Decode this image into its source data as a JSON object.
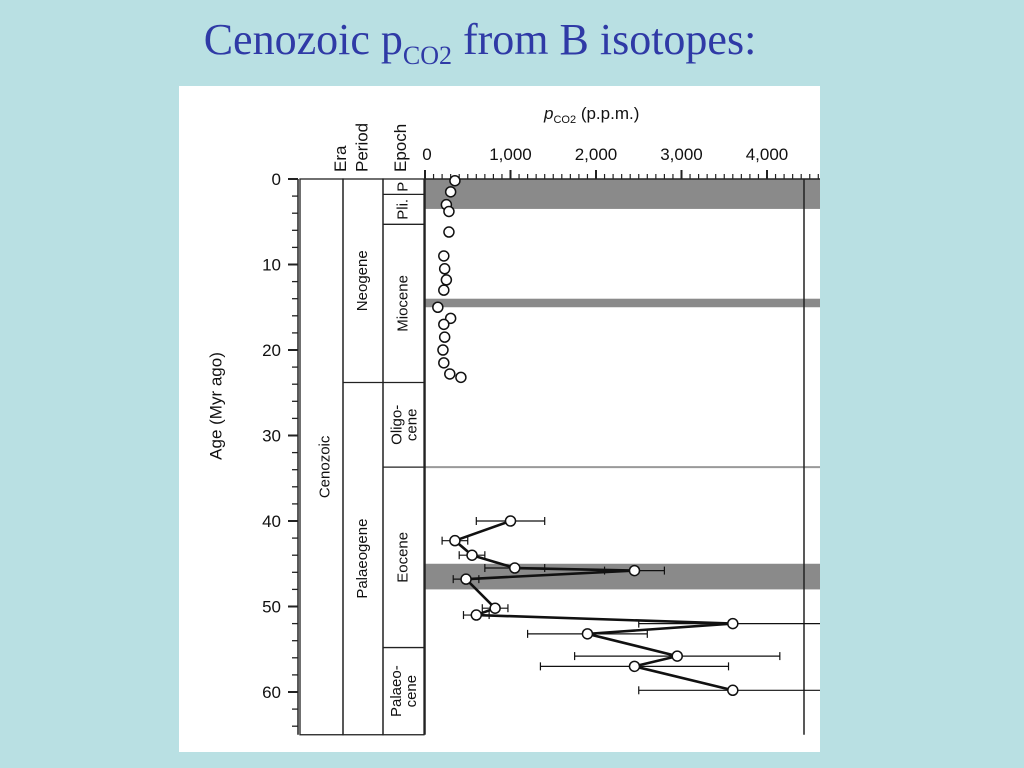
{
  "slide": {
    "title_main": "Cenozoic p",
    "title_sub": "CO2",
    "title_rest": " from B isotopes:",
    "background": "#b9e0e3",
    "title_color": "#2f3aa6"
  },
  "chart_data": {
    "type": "scatter",
    "title": "",
    "xlabel_italic": "p",
    "xlabel_sub": "CO2",
    "xlabel_rest": " (p.p.m.)",
    "ylabel": "Age (Myr ago)",
    "xlim": [
      0,
      5000
    ],
    "ylim": [
      0,
      65
    ],
    "x_ticks": [
      0,
      1000,
      2000,
      3000,
      4000
    ],
    "x_tick_labels": [
      "0",
      "1,000",
      "2,000",
      "3,000",
      "4,000"
    ],
    "y_ticks": [
      0,
      10,
      20,
      30,
      40,
      50,
      60
    ],
    "y_tick_labels": [
      "0",
      "10",
      "20",
      "30",
      "40",
      "50",
      "60"
    ],
    "column_headers": [
      "Era",
      "Period",
      "Epoch"
    ],
    "era": [
      {
        "label": "Cenozoic",
        "from": 0,
        "to": 65
      }
    ],
    "periods": [
      {
        "label": "Neogene",
        "from": 0,
        "to": 23.8
      },
      {
        "label": "Palaeogene",
        "from": 23.8,
        "to": 65
      }
    ],
    "epochs": [
      {
        "label": "P",
        "from": 0,
        "to": 1.8
      },
      {
        "label": "Pli.",
        "from": 1.8,
        "to": 5.3
      },
      {
        "label": "Miocene",
        "from": 5.3,
        "to": 23.8
      },
      {
        "label": "Oligo-\ncene",
        "from": 23.8,
        "to": 33.7
      },
      {
        "label": "Eocene",
        "from": 33.7,
        "to": 54.8
      },
      {
        "label": "Palaeo-\ncene",
        "from": 54.8,
        "to": 65
      }
    ],
    "shaded_intervals": [
      [
        0,
        3.5
      ],
      [
        14,
        15
      ],
      [
        45,
        48
      ]
    ],
    "boundary_line_age": 33.7,
    "series": [
      {
        "style": "points",
        "points": [
          {
            "age": 0.2,
            "pco2": 350
          },
          {
            "age": 1.5,
            "pco2": 300
          },
          {
            "age": 3.0,
            "pco2": 250
          },
          {
            "age": 3.8,
            "pco2": 280
          },
          {
            "age": 6.2,
            "pco2": 280
          },
          {
            "age": 9.0,
            "pco2": 220
          },
          {
            "age": 10.5,
            "pco2": 230
          },
          {
            "age": 11.8,
            "pco2": 250
          },
          {
            "age": 13.0,
            "pco2": 220
          },
          {
            "age": 15.0,
            "pco2": 150
          },
          {
            "age": 16.3,
            "pco2": 300
          },
          {
            "age": 17.0,
            "pco2": 220
          },
          {
            "age": 18.5,
            "pco2": 230
          },
          {
            "age": 20.0,
            "pco2": 210
          },
          {
            "age": 21.5,
            "pco2": 220
          },
          {
            "age": 22.8,
            "pco2": 290
          },
          {
            "age": 23.2,
            "pco2": 420
          }
        ]
      },
      {
        "style": "line",
        "points": [
          {
            "age": 40.0,
            "pco2": 1000,
            "err": 400
          },
          {
            "age": 42.3,
            "pco2": 350,
            "err": 150
          },
          {
            "age": 44.0,
            "pco2": 550,
            "err": 150
          },
          {
            "age": 45.5,
            "pco2": 1050,
            "err": 350
          },
          {
            "age": 45.8,
            "pco2": 2450,
            "err": 350
          },
          {
            "age": 46.8,
            "pco2": 480,
            "err": 150
          },
          {
            "age": 50.2,
            "pco2": 820,
            "err": 150
          },
          {
            "age": 51.0,
            "pco2": 600,
            "err": 150
          },
          {
            "age": 52.0,
            "pco2": 3600,
            "err": 1100
          },
          {
            "age": 53.2,
            "pco2": 1900,
            "err": 700
          },
          {
            "age": 55.8,
            "pco2": 2950,
            "err": 1200
          },
          {
            "age": 57.0,
            "pco2": 2450,
            "err": 1100
          },
          {
            "age": 59.8,
            "pco2": 3600,
            "err": 1100
          }
        ]
      }
    ]
  }
}
